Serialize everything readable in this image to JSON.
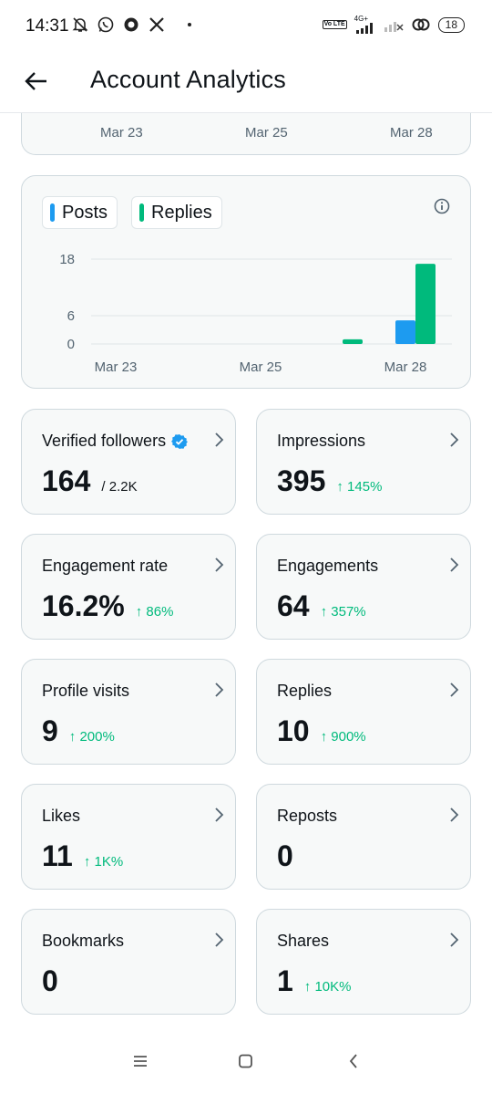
{
  "status_bar": {
    "time": "14:31",
    "network": "4G+",
    "volte": "Vo LTE",
    "battery": "18"
  },
  "header": {
    "title": "Account Analytics",
    "back_icon": "arrow-left-icon"
  },
  "top_card": {
    "x_labels": [
      "Mar 23",
      "Mar 25",
      "Mar 28"
    ]
  },
  "chart_data": {
    "type": "bar",
    "legend": [
      {
        "name": "Posts",
        "color": "#1d9bf0"
      },
      {
        "name": "Replies",
        "color": "#00ba7c"
      }
    ],
    "x_tick_labels": [
      "Mar 23",
      "Mar 25",
      "Mar 28"
    ],
    "y_tick_labels": [
      "18",
      "6",
      "0"
    ],
    "ylim": [
      0,
      18
    ],
    "series": [
      {
        "name": "Posts",
        "x": [
          "Mar 28"
        ],
        "values": [
          5
        ]
      },
      {
        "name": "Replies",
        "x": [
          "Mar 27",
          "Mar 29"
        ],
        "values": [
          1,
          17
        ]
      }
    ]
  },
  "stats": [
    {
      "label": "Verified followers",
      "value": "164",
      "sub": "/ 2.2K",
      "change": "",
      "verified": true
    },
    {
      "label": "Impressions",
      "value": "395",
      "sub": "",
      "change": "↑ 145%"
    },
    {
      "label": "Engagement rate",
      "value": "16.2%",
      "sub": "",
      "change": "↑ 86%"
    },
    {
      "label": "Engagements",
      "value": "64",
      "sub": "",
      "change": "↑ 357%"
    },
    {
      "label": "Profile visits",
      "value": "9",
      "sub": "",
      "change": "↑ 200%"
    },
    {
      "label": "Replies",
      "value": "10",
      "sub": "",
      "change": "↑ 900%"
    },
    {
      "label": "Likes",
      "value": "11",
      "sub": "",
      "change": "↑ 1K%"
    },
    {
      "label": "Reposts",
      "value": "0",
      "sub": "",
      "change": ""
    },
    {
      "label": "Bookmarks",
      "value": "0",
      "sub": "",
      "change": ""
    },
    {
      "label": "Shares",
      "value": "1",
      "sub": "",
      "change": "↑ 10K%"
    }
  ],
  "nav_bar": {
    "buttons": [
      "menu-icon",
      "home-square-icon",
      "back-chevron-icon"
    ]
  }
}
